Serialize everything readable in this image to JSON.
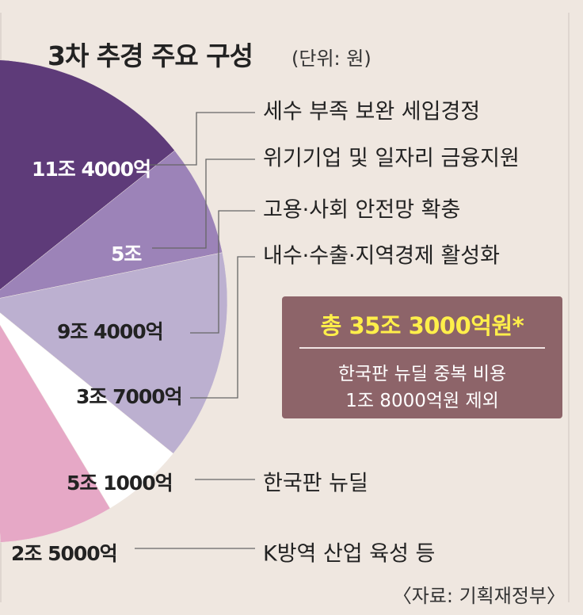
{
  "title": "3차 추경 주요 구성",
  "unit": "(단위: 원)",
  "source": "〈자료: 기획재정부〉",
  "total": {
    "main": "총 35조 3000억원*",
    "note_line1": "한국판 뉴딜 중복 비용",
    "note_line2": "1조 8000억원 제외"
  },
  "colors": {
    "background": "#efe7e0",
    "box": "#8d6469",
    "total_text": "#ffef4a"
  },
  "chart_data": {
    "type": "pie",
    "unit": "원",
    "segments": [
      {
        "label": "세수 부족 보완 세입경정",
        "value_text": "11조 4000억",
        "value": 114000,
        "color": "#5e3b79"
      },
      {
        "label": "위기기업 및 일자리 금융지원",
        "value_text": "5조",
        "value": 50000,
        "color": "#9c83b8"
      },
      {
        "label": "고용·사회 안전망 확충",
        "value_text": "9조 4000억",
        "value": 94000,
        "color": "#bcb0d0"
      },
      {
        "label": "내수·수출·지역경제 활성화",
        "value_text": "3조 7000억",
        "value": 37000,
        "color": "#ffffff"
      },
      {
        "label": "한국판 뉴딜",
        "value_text": "5조 1000억",
        "value": 51000,
        "color": "#e6a8c6"
      },
      {
        "label": "K방역 산업 육성 등",
        "value_text": "2조 5000억",
        "value": 25000,
        "color": "#a86f8c"
      }
    ]
  }
}
